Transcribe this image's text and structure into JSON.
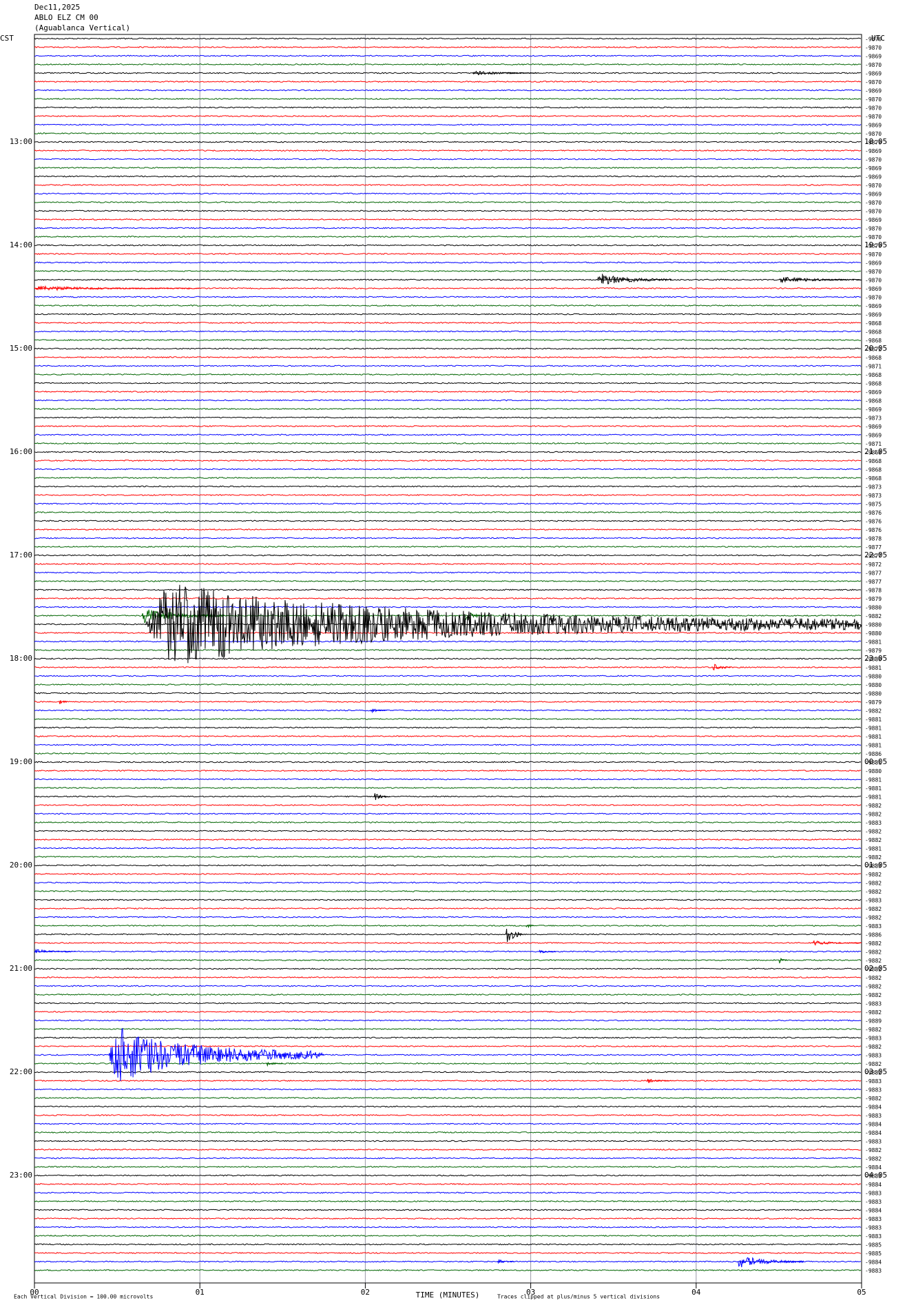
{
  "chart_data": {
    "type": "helicorder",
    "title": "Dec11,2025",
    "subtitle": "ABLO ELZ CM 00",
    "station": "(Aguablanca Vertical)",
    "left_zone": "CST",
    "right_zone": "UTC",
    "x_label": "TIME (MINUTES)",
    "scale_note": "Each Vertical Division =  100.00 microvolts",
    "clip_note": "Traces clipped at plus/minus 5 vertical divisions",
    "xlim": [
      0,
      5
    ],
    "xticks": [
      {
        "value": 0,
        "label": "00"
      },
      {
        "value": 1,
        "label": "01"
      },
      {
        "value": 2,
        "label": "02"
      },
      {
        "value": 3,
        "label": "03"
      },
      {
        "value": 4,
        "label": "04"
      },
      {
        "value": 5,
        "label": "05"
      }
    ],
    "grid": true,
    "colors": [
      "#000000",
      "#ff0000",
      "#0000ff",
      "#006400"
    ],
    "cst_labels": [
      "13:00",
      "14:00",
      "15:00",
      "16:00",
      "17:00",
      "18:00",
      "19:00",
      "20:00",
      "21:00",
      "22:00",
      "23:00"
    ],
    "utc_labels": [
      "18:05",
      "19:05",
      "20:05",
      "21:05",
      "22:05",
      "23:05",
      "00:05",
      "01:05",
      "02:05",
      "03:05",
      "04:05"
    ],
    "offsets": [
      -9870,
      -9870,
      -9869,
      -9870,
      -9869,
      -9870,
      -9869,
      -9870,
      -9870,
      -9870,
      -9869,
      -9870,
      -9870,
      -9869,
      -9870,
      -9869,
      -9869,
      -9870,
      -9869,
      -9870,
      -9870,
      -9869,
      -9870,
      -9870,
      -9870,
      -9870,
      -9869,
      -9870,
      -9870,
      -9869,
      -9870,
      -9869,
      -9869,
      -9868,
      -9868,
      -9868,
      -9872,
      -9868,
      -9871,
      -9868,
      -9868,
      -9869,
      -9868,
      -9869,
      -9873,
      -9869,
      -9869,
      -9871,
      -9868,
      -9868,
      -9868,
      -9868,
      -9873,
      -9873,
      -9875,
      -9876,
      -9876,
      -9876,
      -9878,
      -9877,
      -9877,
      -9872,
      -9877,
      -9877,
      -9878,
      -9879,
      -9880,
      -9882,
      -9880,
      -9880,
      -9881,
      -9879,
      -9880,
      -9881,
      -9880,
      -9880,
      -9880,
      -9879,
      -9882,
      -9881,
      -9881,
      -9881,
      -9881,
      -9886,
      -9881,
      -9880,
      -9881,
      -9881,
      -9881,
      -9882,
      -9882,
      -9883,
      -9882,
      -9882,
      -9881,
      -9882,
      -9883,
      -9882,
      -9882,
      -9882,
      -9883,
      -9882,
      -9882,
      -9883,
      -9886,
      -9882,
      -9882,
      -9882,
      -9882,
      -9882,
      -9882,
      -9882,
      -9883,
      -9882,
      -9889,
      -9882,
      -9883,
      -9882,
      -9883,
      -9882,
      -9882,
      -9883,
      -9883,
      -9882,
      -9884,
      -9883,
      -9884,
      -9884,
      -9883,
      -9882,
      -9882,
      -9884,
      -9883,
      -9884,
      -9883,
      -9883,
      -9884,
      -9883,
      -9883,
      -9883,
      -9885,
      -9885,
      -9884,
      -9883
    ],
    "events": [
      {
        "trace": 4,
        "start": 2.65,
        "duration": 0.4,
        "amplitude": 0.3
      },
      {
        "trace": 28,
        "start": 3.4,
        "duration": 0.45,
        "amplitude": 0.8
      },
      {
        "trace": 28,
        "start": 4.5,
        "duration": 0.5,
        "amplitude": 0.4
      },
      {
        "trace": 29,
        "start": 0,
        "duration": 1.0,
        "amplitude": 0.3
      },
      {
        "trace": 67,
        "start": 0.65,
        "duration": 0.5,
        "amplitude": 1.0
      },
      {
        "trace": 67,
        "start": 2.6,
        "duration": 0.15,
        "amplitude": 0.6
      },
      {
        "trace": 68,
        "start": 0.67,
        "duration": 4.33,
        "amplitude": 5
      },
      {
        "trace": 73,
        "start": 4.1,
        "duration": 0.12,
        "amplitude": 0.5
      },
      {
        "trace": 77,
        "start": 0.15,
        "duration": 0.05,
        "amplitude": 0.5
      },
      {
        "trace": 78,
        "start": 2.03,
        "duration": 0.1,
        "amplitude": 0.3
      },
      {
        "trace": 88,
        "start": 2.05,
        "duration": 0.1,
        "amplitude": 0.6
      },
      {
        "trace": 103,
        "start": 2.97,
        "duration": 0.05,
        "amplitude": 0.6
      },
      {
        "trace": 104,
        "start": 2.85,
        "duration": 0.1,
        "amplitude": 1.5
      },
      {
        "trace": 105,
        "start": 4.7,
        "duration": 0.3,
        "amplitude": 0.3
      },
      {
        "trace": 106,
        "start": 0,
        "duration": 0.25,
        "amplitude": 0.3
      },
      {
        "trace": 106,
        "start": 3.05,
        "duration": 0.1,
        "amplitude": 0.3
      },
      {
        "trace": 107,
        "start": 4.5,
        "duration": 0.05,
        "amplitude": 0.4
      },
      {
        "trace": 118,
        "start": 0.45,
        "duration": 1.3,
        "amplitude": 3.5
      },
      {
        "trace": 119,
        "start": 1.4,
        "duration": 0.1,
        "amplitude": 0.3
      },
      {
        "trace": 121,
        "start": 3.7,
        "duration": 0.15,
        "amplitude": 0.3
      },
      {
        "trace": 142,
        "start": 2.8,
        "duration": 0.1,
        "amplitude": 0.3
      },
      {
        "trace": 142,
        "start": 4.25,
        "duration": 0.4,
        "amplitude": 0.8
      }
    ]
  }
}
